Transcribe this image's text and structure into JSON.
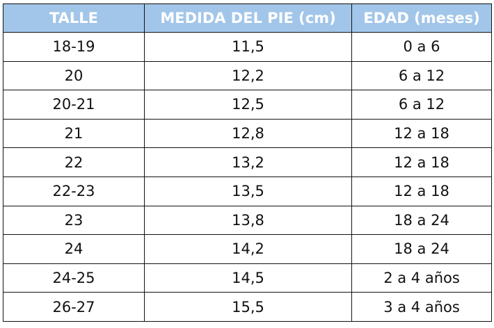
{
  "table": {
    "header": [
      "TALLE",
      "MEDIDA DEL PIE (cm)",
      "EDAD (meses)"
    ],
    "rows": [
      [
        "18-19",
        "11,5",
        "0 a 6"
      ],
      [
        "20",
        "12,2",
        "6 a 12"
      ],
      [
        "20-21",
        "12,5",
        "6 a 12"
      ],
      [
        "21",
        "12,8",
        "12 a 18"
      ],
      [
        "22",
        "13,2",
        "12 a 18"
      ],
      [
        "22-23",
        "13,5",
        "12 a 18"
      ],
      [
        "23",
        "13,8",
        "18 a 24"
      ],
      [
        "24",
        "14,2",
        "18 a 24"
      ],
      [
        "24-25",
        "14,5",
        "2 a 4 años"
      ],
      [
        "26-27",
        "15,5",
        "3 a 4 años"
      ]
    ]
  }
}
